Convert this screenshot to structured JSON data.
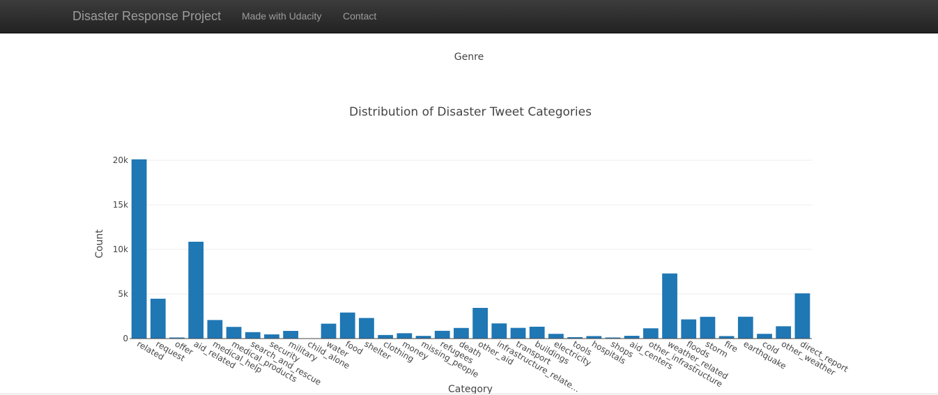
{
  "navbar": {
    "brand": "Disaster Response Project",
    "links": [
      "Made with Udacity",
      "Contact"
    ]
  },
  "genre_chart": {
    "title": "Genre"
  },
  "chart_data": {
    "type": "bar",
    "title": "Distribution of Disaster Tweet Categories",
    "xlabel": "Category",
    "ylabel": "Count",
    "ylim": [
      0,
      20000
    ],
    "yticks": [
      0,
      5000,
      10000,
      15000,
      20000
    ],
    "ytick_labels": [
      "0",
      "5k",
      "10k",
      "15k",
      "20k"
    ],
    "grid": true,
    "bar_color": "#1f77b4",
    "categories": [
      "related",
      "request",
      "offer",
      "aid_related",
      "medical_help",
      "medical_products",
      "search_and_rescue",
      "security",
      "military",
      "child_alone",
      "water",
      "food",
      "shelter",
      "clothing",
      "money",
      "missing_people",
      "refugees",
      "death",
      "other_aid",
      "infrastructure_related",
      "transport",
      "buildings",
      "electricity",
      "tools",
      "hospitals",
      "shops",
      "aid_centers",
      "other_infrastructure",
      "weather_related",
      "floods",
      "storm",
      "fire",
      "earthquake",
      "cold",
      "other_weather",
      "direct_report"
    ],
    "tick_labels": [
      "related",
      "request",
      "offer",
      "aid_related",
      "medical_help",
      "medical_products",
      "search_and_rescue",
      "security",
      "military",
      "child_alone",
      "water",
      "food",
      "shelter",
      "clothing",
      "money",
      "missing_people",
      "refugees",
      "death",
      "other_aid",
      "infrastructure_relate…",
      "transport",
      "buildings",
      "electricity",
      "tools",
      "hospitals",
      "shops",
      "aid_centers",
      "other_infrastructure",
      "weather_related",
      "floods",
      "storm",
      "fire",
      "earthquake",
      "cold",
      "other_weather",
      "direct_report"
    ],
    "values": [
      20100,
      4470,
      120,
      10860,
      2080,
      1310,
      720,
      470,
      860,
      0,
      1670,
      2920,
      2310,
      400,
      600,
      300,
      870,
      1190,
      3440,
      1700,
      1200,
      1330,
      530,
      160,
      280,
      120,
      310,
      1150,
      7300,
      2150,
      2440,
      280,
      2450,
      530,
      1380,
      5070
    ]
  }
}
